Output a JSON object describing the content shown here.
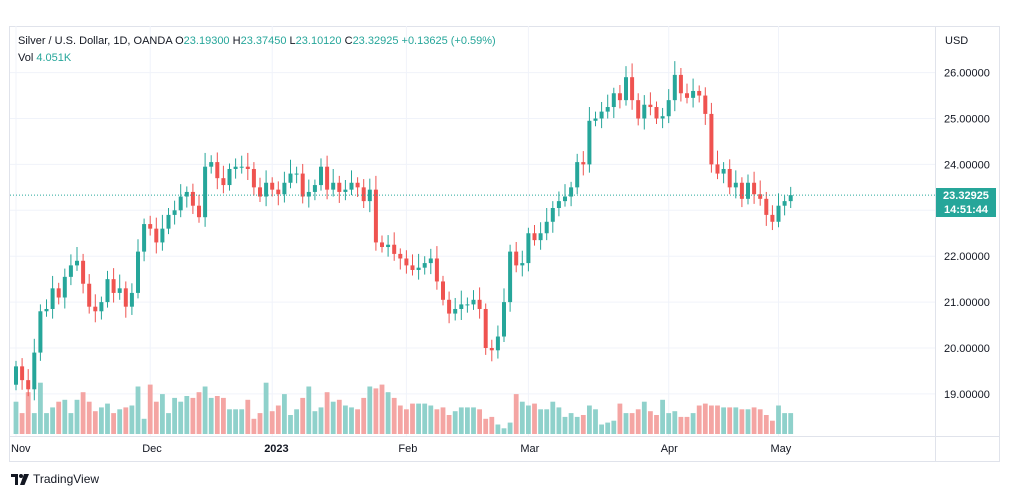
{
  "legend": {
    "symbol": "Silver / U.S. Dollar, 1D, OANDA",
    "o_label": "O",
    "o_value": "23.19300",
    "h_label": "H",
    "h_value": "23.37450",
    "l_label": "L",
    "l_value": "23.10120",
    "c_label": "C",
    "c_value": "23.32925",
    "change": "+0.13625 (+0.59%)",
    "vol_label": "Vol",
    "vol_value": "4.051K"
  },
  "currency": "USD",
  "price_tag": {
    "price": "23.32925",
    "countdown": "14:51:44"
  },
  "branding": {
    "name": "TradingView",
    "icon": "tradingview-logo-icon"
  },
  "colors": {
    "up": "#26a69a",
    "down": "#ef5350",
    "vol_up": "#8fd1cb",
    "vol_down": "#f4a5a3"
  },
  "chart_data": {
    "type": "candlestick",
    "title": "Silver / U.S. Dollar, 1D, OANDA",
    "ylim": [
      18.15,
      26.7
    ],
    "y_ticks": [
      "26.00000",
      "25.00000",
      "24.00000",
      "23.00000",
      "22.00000",
      "21.00000",
      "20.00000",
      "19.00000"
    ],
    "y_tick_values": [
      26,
      25,
      24,
      23,
      22,
      21,
      20,
      19
    ],
    "x_ticks": [
      {
        "label": "Nov",
        "index": 0
      },
      {
        "label": "Dec",
        "index": 22
      },
      {
        "label": "2023",
        "index": 42
      },
      {
        "label": "Feb",
        "index": 64
      },
      {
        "label": "Mar",
        "index": 84
      },
      {
        "label": "Apr",
        "index": 107
      },
      {
        "label": "May",
        "index": 125
      }
    ],
    "last_price": 23.32925,
    "closes": [
      19.6,
      19.3,
      19.1,
      19.9,
      20.8,
      20.85,
      21.3,
      21.1,
      21.55,
      21.8,
      21.9,
      21.4,
      20.9,
      20.8,
      21.0,
      21.5,
      21.2,
      21.3,
      20.9,
      21.2,
      22.1,
      22.7,
      22.6,
      22.3,
      22.6,
      22.9,
      23.0,
      23.3,
      23.4,
      23.1,
      22.85,
      23.95,
      24.05,
      23.7,
      23.55,
      23.9,
      23.95,
      23.95,
      23.9,
      23.5,
      23.3,
      23.6,
      23.45,
      23.35,
      23.6,
      23.8,
      23.8,
      23.3,
      23.4,
      23.55,
      23.95,
      23.45,
      23.6,
      23.4,
      23.45,
      23.6,
      23.5,
      23.2,
      23.45,
      22.3,
      22.2,
      22.25,
      22.05,
      21.95,
      21.8,
      21.7,
      21.75,
      21.85,
      21.95,
      21.45,
      21.05,
      20.75,
      20.85,
      20.95,
      20.95,
      21.05,
      20.85,
      20.0,
      19.95,
      20.25,
      21.0,
      22.1,
      21.8,
      21.85,
      22.5,
      22.35,
      22.5,
      22.75,
      23.05,
      23.2,
      23.3,
      23.5,
      24.05,
      24.0,
      24.95,
      25.0,
      25.15,
      25.25,
      25.55,
      25.4,
      25.9,
      25.4,
      25.0,
      25.3,
      25.25,
      25.0,
      25.05,
      25.4,
      25.95,
      25.55,
      25.45,
      25.6,
      25.5,
      25.1,
      24.0,
      23.8,
      23.9,
      23.5,
      23.6,
      23.25,
      23.6,
      23.35,
      23.25,
      22.9,
      22.75,
      23.1,
      23.2,
      23.33
    ],
    "volumes": [
      2.05,
      1.75,
      2.3,
      1.75,
      2.55,
      1.75,
      1.9,
      2.05,
      2.1,
      1.75,
      2.1,
      2.3,
      2.05,
      1.8,
      1.9,
      2.0,
      1.75,
      1.85,
      1.9,
      1.95,
      2.45,
      1.6,
      2.5,
      2.05,
      2.25,
      1.75,
      2.15,
      2.05,
      2.2,
      2.15,
      2.3,
      2.45,
      2.15,
      2.2,
      2.15,
      1.85,
      1.85,
      1.85,
      2.1,
      1.6,
      1.75,
      2.55,
      1.8,
      1.95,
      2.25,
      1.7,
      1.85,
      2.15,
      2.45,
      1.8,
      1.9,
      2.3,
      2.05,
      2.1,
      1.95,
      1.9,
      1.85,
      2.15,
      2.45,
      2.4,
      2.5,
      2.3,
      2.15,
      1.95,
      1.85,
      2.0,
      2.0,
      2.0,
      1.95,
      1.85,
      1.9,
      1.7,
      1.8,
      1.9,
      1.9,
      1.9,
      1.85,
      1.6,
      1.65,
      1.45,
      1.35,
      1.5,
      2.25,
      2.05,
      1.95,
      2.0,
      1.85,
      1.85,
      2.05,
      1.9,
      1.65,
      1.75,
      1.65,
      1.7,
      1.95,
      1.85,
      1.45,
      1.5,
      1.55,
      2.0,
      1.75,
      1.75,
      1.85,
      2.05,
      1.8,
      1.7,
      2.1,
      1.75,
      1.8,
      1.65,
      1.65,
      1.75,
      1.95,
      2.0,
      1.95,
      1.95,
      1.9,
      1.9,
      1.9,
      1.85,
      1.85,
      1.9,
      1.85,
      1.7,
      1.55,
      1.95,
      1.75,
      1.75
    ]
  }
}
